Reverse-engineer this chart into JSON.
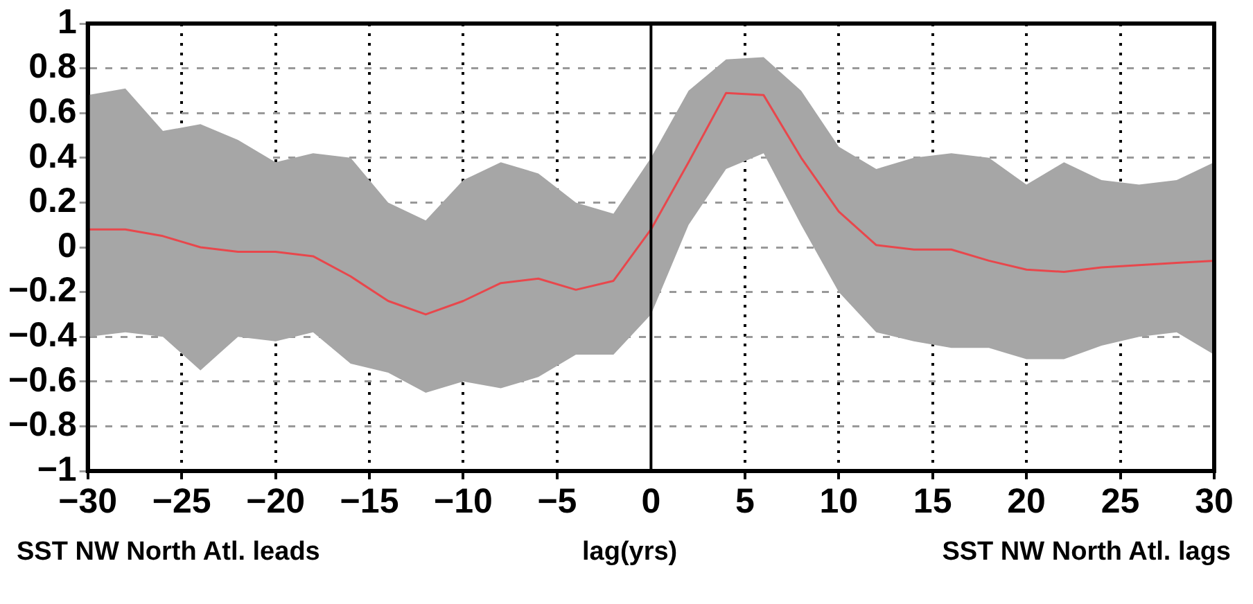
{
  "chart_data": {
    "type": "line",
    "xlabel": "lag(yrs)",
    "annotations": [
      "SST NW North Atl. leads",
      "SST NW North Atl. lags"
    ],
    "x": [
      -30,
      -28,
      -26,
      -24,
      -22,
      -20,
      -18,
      -16,
      -14,
      -12,
      -10,
      -8,
      -6,
      -4,
      -2,
      0,
      2,
      4,
      6,
      8,
      10,
      12,
      14,
      16,
      18,
      20,
      22,
      24,
      26,
      28,
      30
    ],
    "series": [
      {
        "color": "#e8474c",
        "values": [
          0.08,
          0.08,
          0.05,
          0.0,
          -0.02,
          -0.02,
          -0.04,
          -0.13,
          -0.24,
          -0.3,
          -0.24,
          -0.16,
          -0.14,
          -0.19,
          -0.15,
          0.08,
          0.38,
          0.69,
          0.68,
          0.4,
          0.16,
          0.01,
          -0.01,
          -0.01,
          -0.06,
          -0.1,
          -0.11,
          -0.09,
          -0.08,
          -0.07,
          -0.06
        ],
        "lower": [
          -0.4,
          -0.38,
          -0.4,
          -0.55,
          -0.4,
          -0.42,
          -0.38,
          -0.52,
          -0.56,
          -0.65,
          -0.6,
          -0.63,
          -0.58,
          -0.48,
          -0.48,
          -0.3,
          0.1,
          0.35,
          0.42,
          0.1,
          -0.2,
          -0.38,
          -0.42,
          -0.45,
          -0.45,
          -0.5,
          -0.5,
          -0.44,
          -0.4,
          -0.38,
          -0.48
        ],
        "upper": [
          0.68,
          0.71,
          0.52,
          0.55,
          0.48,
          0.38,
          0.42,
          0.4,
          0.2,
          0.12,
          0.3,
          0.38,
          0.33,
          0.2,
          0.15,
          0.4,
          0.7,
          0.84,
          0.85,
          0.7,
          0.45,
          0.35,
          0.4,
          0.42,
          0.4,
          0.28,
          0.38,
          0.3,
          0.28,
          0.3,
          0.38
        ]
      }
    ],
    "xlim": [
      -30,
      30
    ],
    "xticks": [
      -30,
      -25,
      -20,
      -15,
      -10,
      -5,
      0,
      5,
      10,
      15,
      20,
      25,
      30
    ],
    "ylim": [
      -1,
      1
    ],
    "yticks": [
      -1,
      -0.8,
      -0.6,
      -0.4,
      -0.2,
      0,
      0.2,
      0.4,
      0.6,
      0.8,
      1
    ],
    "ref_lines": [
      {
        "axis": "x",
        "value": 0,
        "color": "#000000"
      }
    ],
    "grid": true,
    "legend": false,
    "marker": "none",
    "line_style": "solid"
  }
}
